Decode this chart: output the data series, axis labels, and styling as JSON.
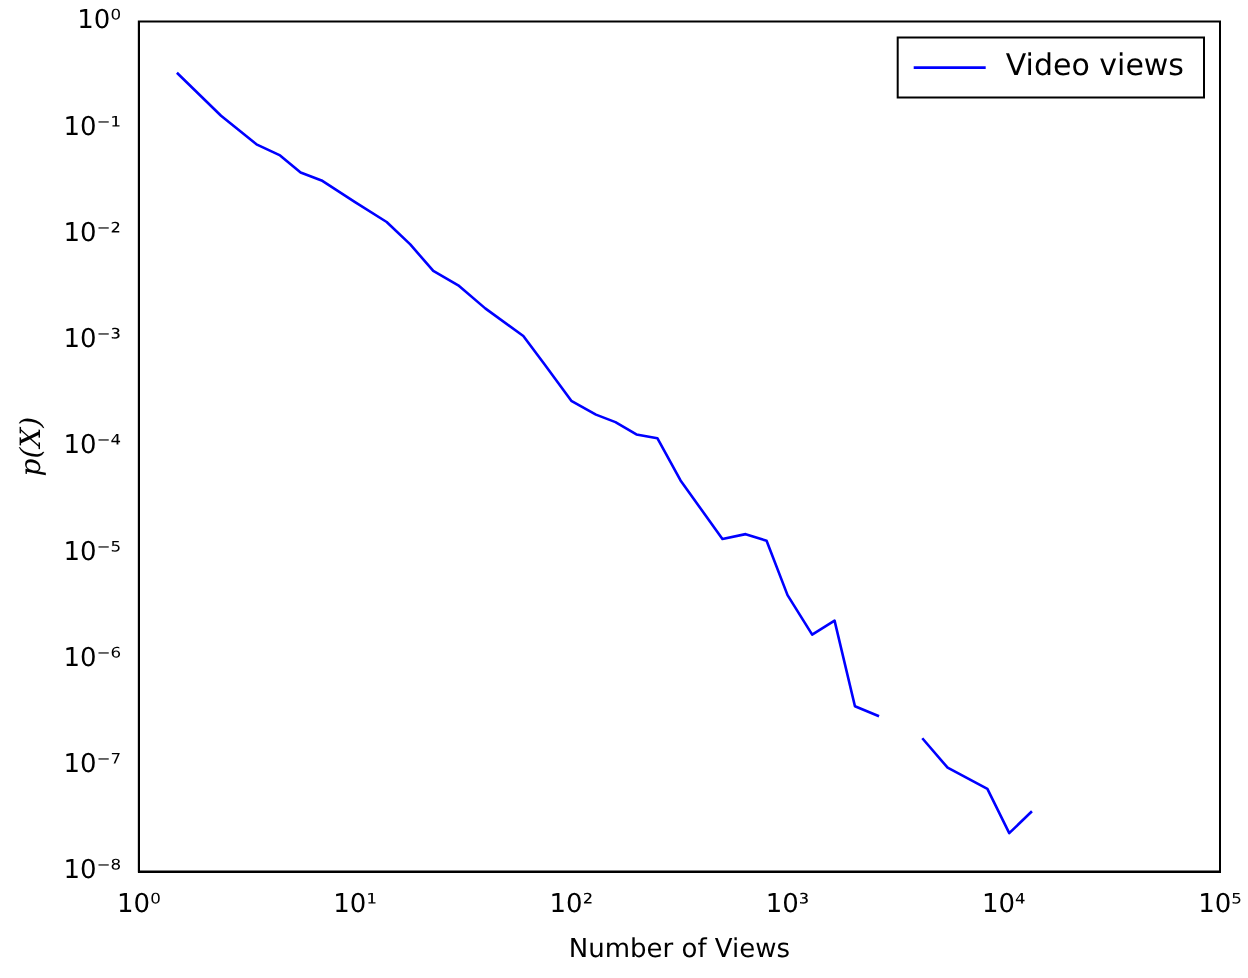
{
  "chart_data": {
    "type": "line",
    "xlabel": "Number of Views",
    "ylabel": "p(X)",
    "log": "xy",
    "grid": false,
    "legend": "top right",
    "marker": "none",
    "line_style": "solid",
    "xlim": [
      1,
      100000
    ],
    "ylim": [
      1e-08,
      1
    ],
    "xticks": [
      {
        "value": 1,
        "label": "10⁰"
      },
      {
        "value": 10,
        "label": "10¹"
      },
      {
        "value": 100,
        "label": "10²"
      },
      {
        "value": 1000,
        "label": "10³"
      },
      {
        "value": 10000,
        "label": "10⁴"
      },
      {
        "value": 100000,
        "label": "10⁵"
      }
    ],
    "yticks": [
      {
        "value": 1e-08,
        "label": "10⁻⁸"
      },
      {
        "value": 1e-07,
        "label": "10⁻⁷"
      },
      {
        "value": 1e-06,
        "label": "10⁻⁶"
      },
      {
        "value": 1e-05,
        "label": "10⁻⁵"
      },
      {
        "value": 0.0001,
        "label": "10⁻⁴"
      },
      {
        "value": 0.001,
        "label": "10⁻³"
      },
      {
        "value": 0.01,
        "label": "10⁻²"
      },
      {
        "value": 0.1,
        "label": "10⁻¹"
      },
      {
        "value": 1,
        "label": "10⁰"
      }
    ],
    "series": [
      {
        "name": "Video views",
        "color": "#0000ff",
        "x": [
          1.5,
          2.4,
          3.5,
          4.5,
          5.6,
          7,
          10,
          14,
          18,
          23,
          30,
          40,
          60,
          75,
          100,
          130,
          160,
          200,
          250,
          320,
          500,
          640,
          800,
          1000,
          1300,
          1650,
          2050,
          2650,
          3400,
          4200,
          5500,
          8400,
          10600,
          13500
        ],
        "values": [
          0.33,
          0.13,
          0.07,
          0.055,
          0.038,
          0.032,
          0.02,
          0.013,
          0.008,
          0.0045,
          0.0033,
          0.002,
          0.0011,
          0.0006,
          0.00027,
          0.0002,
          0.00017,
          0.00013,
          0.00012,
          4.8e-05,
          1.35e-05,
          1.5e-05,
          1.3e-05,
          4e-06,
          1.7e-06,
          2.3e-06,
          3.6e-07,
          2.9e-07,
          null,
          1.8e-07,
          9.5e-08,
          6e-08,
          2.3e-08,
          3.7e-08
        ]
      }
    ]
  }
}
